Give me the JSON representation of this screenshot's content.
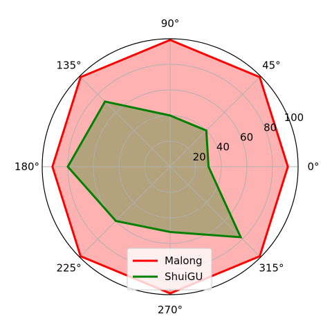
{
  "chart_data": {
    "type": "radar",
    "angle_labels": [
      "0°",
      "45°",
      "90°",
      "135°",
      "180°",
      "225°",
      "270°",
      "315°"
    ],
    "angles_deg": [
      0,
      45,
      90,
      135,
      180,
      225,
      270,
      315
    ],
    "r_ticks": [
      20,
      40,
      60,
      80,
      100
    ],
    "r_tick_labels": [
      "20",
      "40",
      "60",
      "80",
      "100"
    ],
    "rlim": [
      0,
      100
    ],
    "grid": true,
    "legend_position": "bottom",
    "series": [
      {
        "name": "Malong",
        "color": "#ff0000",
        "fill": "#ff0000",
        "fill_alpha": 0.3,
        "angles_deg": [
          0,
          45,
          90,
          135,
          180,
          225,
          270,
          315
        ],
        "values": [
          92,
          99,
          99,
          99,
          92,
          99,
          99,
          99
        ]
      },
      {
        "name": "ShuiGU",
        "color": "#008000",
        "fill": "#008000",
        "fill_alpha": 0.3,
        "angles_deg": [
          0,
          45,
          90,
          135,
          180,
          225,
          270,
          315
        ],
        "values": [
          30,
          40,
          40,
          72,
          80,
          60,
          51,
          78
        ]
      }
    ]
  }
}
